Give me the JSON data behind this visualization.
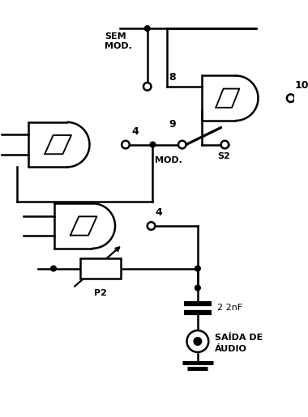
{
  "background_color": "#ffffff",
  "line_color": "#000000",
  "figsize": [
    3.8,
    5.15
  ],
  "dpi": 100,
  "labels": {
    "sem_mod": "SEM\nMOD.",
    "mod": "MOD.",
    "s2": "S2",
    "pin8": "8",
    "pin9": "9",
    "pin10": "10",
    "pin4_top": "4",
    "pin4_bot": "4",
    "p2": "P2",
    "cap": "2 2nF",
    "saida_line1": "SAÍDA DE",
    "saida_line2": "ÁUDIO"
  }
}
